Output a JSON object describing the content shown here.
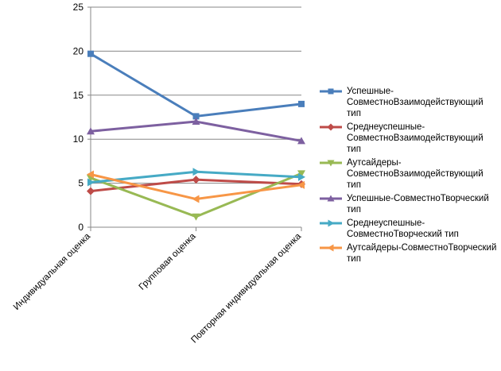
{
  "chart_data": {
    "type": "line",
    "categories": [
      "Индивидуальная оценка",
      "Групповая оценка",
      "Повторная индивидуальная оценка"
    ],
    "ylim": [
      0,
      25
    ],
    "yticks": [
      0,
      5,
      10,
      15,
      20,
      25
    ],
    "grid": true,
    "legend_position": "right",
    "series": [
      {
        "name": "Успешные-СовместноВзаимодействующий тип",
        "values": [
          19.7,
          12.6,
          14.0
        ],
        "color": "#4a7ebb",
        "marker": "square"
      },
      {
        "name": "Среднеуспешные-СовместноВзаимодействующий тип",
        "values": [
          4.1,
          5.4,
          4.9
        ],
        "color": "#be4b48",
        "marker": "diamond"
      },
      {
        "name": "Аутсайдеры-СовместноВзаимодействующий тип",
        "values": [
          5.6,
          1.2,
          6.1
        ],
        "color": "#98b954",
        "marker": "triangle-down"
      },
      {
        "name": "Успешные-СовместноТворческий тип",
        "values": [
          10.9,
          12.0,
          9.8
        ],
        "color": "#7d60a0",
        "marker": "triangle-up"
      },
      {
        "name": "Среднеуспешные-СовместноТворческий тип",
        "values": [
          5.1,
          6.3,
          5.7
        ],
        "color": "#46aac5",
        "marker": "triangle-right"
      },
      {
        "name": "Аутсайдеры-СовместноТворческий тип",
        "values": [
          6.0,
          3.2,
          4.8
        ],
        "color": "#f79646",
        "marker": "triangle-left"
      }
    ]
  }
}
